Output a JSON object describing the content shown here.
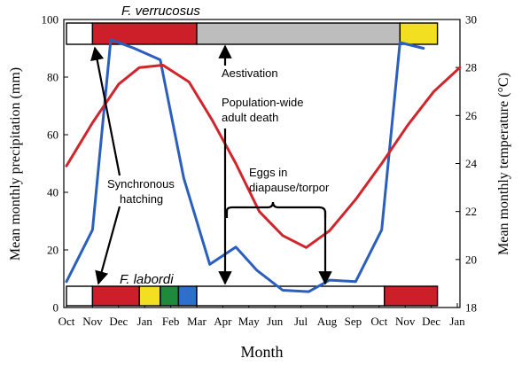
{
  "chart_data": {
    "type": "line",
    "xlabel": "Month",
    "ylabel_left": "Mean monthly precipitation (mm)",
    "ylabel_right": "Mean monthly temperature (°C)",
    "x_tick_labels": [
      "Oct",
      "Nov",
      "Dec",
      "Jan",
      "Feb",
      "Mar",
      "Apr",
      "May",
      "Jun",
      "Jul",
      "Aug",
      "Sep",
      "Oct",
      "Nov",
      "Dec",
      "Jan"
    ],
    "ylim_left": [
      0,
      100
    ],
    "yticks_left": [
      0,
      20,
      40,
      60,
      80,
      100
    ],
    "ylim_right": [
      18,
      30
    ],
    "yticks_right": [
      18,
      20,
      22,
      24,
      26,
      28,
      30
    ],
    "series": [
      {
        "axis": "left",
        "color": "#2b5fbd",
        "points": [
          [
            0,
            9
          ],
          [
            1,
            27
          ],
          [
            1.7,
            93
          ],
          [
            2.6,
            90
          ],
          [
            3.6,
            86
          ],
          [
            4.5,
            45
          ],
          [
            5.5,
            15
          ],
          [
            6.5,
            21
          ],
          [
            7.3,
            13
          ],
          [
            8.3,
            6
          ],
          [
            9.3,
            5.5
          ],
          [
            10.1,
            9.5
          ],
          [
            11.1,
            9
          ],
          [
            12.1,
            27
          ],
          [
            12.8,
            92
          ],
          [
            13.7,
            90
          ]
        ]
      },
      {
        "axis": "right",
        "color": "#d0252b",
        "points": [
          [
            0,
            23.9
          ],
          [
            1,
            25.7
          ],
          [
            2,
            27.3
          ],
          [
            2.8,
            28
          ],
          [
            3.7,
            28.1
          ],
          [
            4.7,
            27.4
          ],
          [
            5.6,
            25.8
          ],
          [
            6.5,
            24
          ],
          [
            7.4,
            22
          ],
          [
            8.3,
            21
          ],
          [
            9.2,
            20.5
          ],
          [
            10.1,
            21.2
          ],
          [
            11.1,
            22.5
          ],
          [
            12.1,
            24
          ],
          [
            13.1,
            25.6
          ],
          [
            14.1,
            27
          ],
          [
            15.1,
            28
          ]
        ]
      }
    ],
    "top_bar": {
      "label": "F. verrucosus",
      "segments": [
        {
          "from": 0,
          "to": 1,
          "color": "#ffffff"
        },
        {
          "from": 1,
          "to": 5,
          "color": "#cc1f2a"
        },
        {
          "from": 5,
          "to": 12.8,
          "color": "#bdbdbd"
        },
        {
          "from": 12.8,
          "to": 14,
          "color": "#f3df21"
        }
      ]
    },
    "bottom_bar": {
      "label": "F. labordi",
      "segments": [
        {
          "from": 0,
          "to": 1,
          "color": "#ffffff"
        },
        {
          "from": 1,
          "to": 2.8,
          "color": "#cc1f2a"
        },
        {
          "from": 2.8,
          "to": 3.6,
          "color": "#f3df21"
        },
        {
          "from": 3.6,
          "to": 4.3,
          "color": "#1e8a3b"
        },
        {
          "from": 4.3,
          "to": 5,
          "color": "#2d6fcb"
        },
        {
          "from": 5,
          "to": 12.2,
          "color": "#ffffff"
        },
        {
          "from": 12.2,
          "to": 14,
          "color": "#cc1f2a"
        }
      ]
    },
    "annotations": {
      "aestivation": "Aestivation",
      "death_line1": "Population-wide",
      "death_line2": "adult death",
      "eggs_line1": "Eggs in",
      "eggs_line2": "diapause/torpor",
      "hatch_line1": "Synchronous",
      "hatch_line2": "hatching"
    }
  }
}
